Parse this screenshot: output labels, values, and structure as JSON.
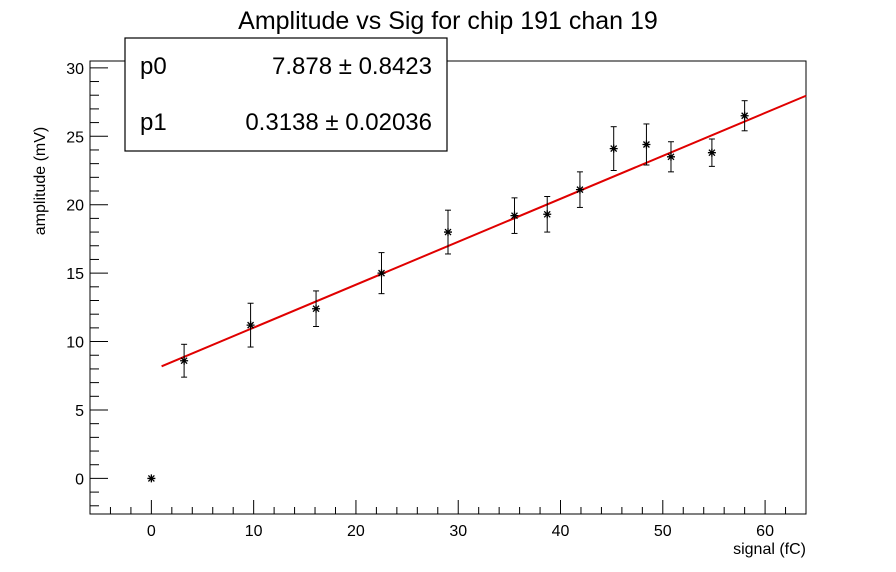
{
  "chart_data": {
    "type": "scatter",
    "title": "Amplitude vs Sig for chip 191 chan 19",
    "xlabel": "signal (fC)",
    "ylabel": "amplitude (mV)",
    "xlim": [
      -6,
      64
    ],
    "ylim": [
      -2.6,
      30.5
    ],
    "x_ticks": [
      0,
      10,
      20,
      30,
      40,
      50,
      60
    ],
    "y_ticks": [
      0,
      5,
      10,
      15,
      20,
      25,
      30
    ],
    "grid": false,
    "points": [
      {
        "x": 0.0,
        "y": 0.0,
        "err": 0.0
      },
      {
        "x": 3.2,
        "y": 8.6,
        "err": 1.2
      },
      {
        "x": 9.7,
        "y": 11.2,
        "err": 1.6
      },
      {
        "x": 16.1,
        "y": 12.4,
        "err": 1.3
      },
      {
        "x": 22.5,
        "y": 15.0,
        "err": 1.5
      },
      {
        "x": 29.0,
        "y": 18.0,
        "err": 1.6
      },
      {
        "x": 35.5,
        "y": 19.2,
        "err": 1.3
      },
      {
        "x": 38.7,
        "y": 19.3,
        "err": 1.3
      },
      {
        "x": 41.9,
        "y": 21.1,
        "err": 1.3
      },
      {
        "x": 45.2,
        "y": 24.1,
        "err": 1.6
      },
      {
        "x": 48.4,
        "y": 24.4,
        "err": 1.5
      },
      {
        "x": 50.8,
        "y": 23.5,
        "err": 1.1
      },
      {
        "x": 54.8,
        "y": 23.8,
        "err": 1.0
      },
      {
        "x": 58.0,
        "y": 26.5,
        "err": 1.1
      }
    ],
    "fit": {
      "type": "linear",
      "p0": 7.878,
      "p1": 0.3138,
      "x_range": [
        1.0,
        64.0
      ],
      "color": "#e00000"
    },
    "stats_box": {
      "position": "top-left",
      "rows": [
        {
          "name": "p0",
          "value": "7.878 ± 0.8423"
        },
        {
          "name": "p1",
          "value": "0.3138 ± 0.02036"
        }
      ]
    }
  }
}
